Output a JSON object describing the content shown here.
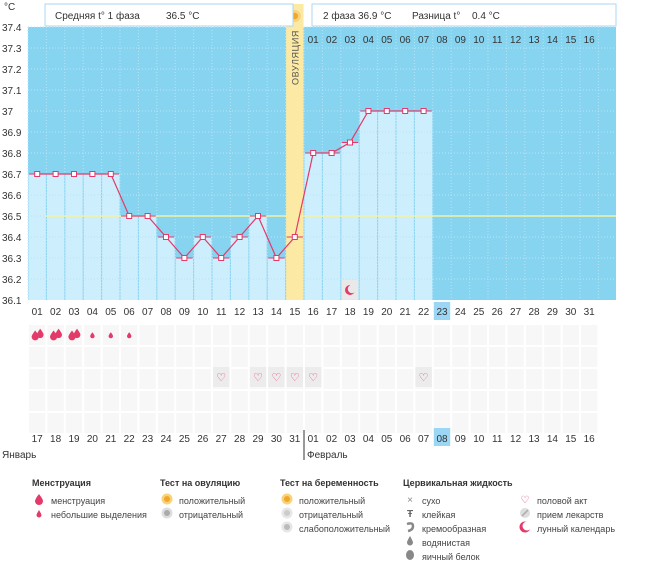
{
  "colors": {
    "sky": "#87d4f1",
    "bar": "#cdeefc",
    "bar_edge": "#a8d9f3",
    "line": "#e33a6a",
    "cover": "#fbe9a4",
    "ovulation": "#fbe9a4",
    "coverline": "#f3f2a0",
    "accent_red": "#d81b60",
    "hl": "#9bd6f4"
  },
  "header": {
    "unit": "°C",
    "phase1": "Средняя t° 1 фаза",
    "phase1_value": "36.5 °C",
    "phase2": "2 фаза",
    "phase2_value": "36.9 °C",
    "diff": "Разница t°",
    "diff_value": "0.4 °C"
  },
  "ovulation_label": "ОВУЛЯЦИЯ",
  "top_day_labels": [
    "01",
    "02",
    "03",
    "04",
    "05",
    "06",
    "07",
    "08",
    "09",
    "10",
    "11",
    "12",
    "13",
    "14",
    "15",
    "16"
  ],
  "chart_data": {
    "type": "line",
    "ylabel": "°C",
    "ylim": [
      36.1,
      37.4
    ],
    "y_ticks": [
      "37.4",
      "37.3",
      "37.2",
      "37.1",
      "37",
      "36.9",
      "36.8",
      "36.7",
      "36.6",
      "36.5",
      "36.4",
      "36.3",
      "36.2",
      "36.1"
    ],
    "x": [
      "01",
      "02",
      "03",
      "04",
      "05",
      "06",
      "07",
      "08",
      "09",
      "10",
      "11",
      "12",
      "13",
      "14",
      "15",
      "16",
      "17",
      "18",
      "19",
      "20",
      "21",
      "22",
      "23",
      "24",
      "25",
      "26",
      "27",
      "28",
      "29",
      "30",
      "31"
    ],
    "values": [
      36.7,
      36.7,
      36.7,
      36.7,
      36.7,
      36.5,
      36.5,
      36.4,
      36.3,
      36.4,
      36.3,
      36.4,
      36.5,
      36.3,
      36.4,
      36.8,
      36.8,
      36.85,
      37.0,
      37.0,
      37.0,
      37.0,
      null,
      null,
      null,
      null,
      null,
      null,
      null,
      null,
      null
    ],
    "coverline": 36.5,
    "ovulation_day": "15",
    "highlight_day": "23",
    "lunar_day": "18"
  },
  "date_row": {
    "dates": [
      "17",
      "18",
      "19",
      "20",
      "21",
      "22",
      "23",
      "24",
      "25",
      "26",
      "27",
      "28",
      "29",
      "30",
      "31",
      "01",
      "02",
      "03",
      "04",
      "05",
      "06",
      "07",
      "08",
      "09",
      "10",
      "11",
      "12",
      "13",
      "14",
      "15",
      "16"
    ],
    "red": [
      false,
      true,
      true,
      false,
      false,
      false,
      false,
      false,
      true,
      true,
      false,
      false,
      false,
      false,
      false,
      true,
      true,
      false,
      false,
      false,
      false,
      false,
      false,
      true,
      false,
      false,
      false,
      false,
      false,
      true,
      true
    ],
    "month1": "Январь",
    "month2": "Февраль"
  },
  "markers": {
    "menstruation": {
      "icon": "menstruation-drop-icon",
      "days": [
        "01",
        "02",
        "03"
      ]
    },
    "spotting": {
      "icon": "small-drop-icon",
      "days": [
        "04",
        "05",
        "06"
      ]
    },
    "intercourse": {
      "icon": "heart-icon",
      "days": [
        "11",
        "13",
        "14",
        "15",
        "16",
        "22"
      ]
    }
  },
  "legend": {
    "col1_title": "Менструация",
    "col1": [
      "менструация",
      "небольшие выделения"
    ],
    "col2_title": "Тест на овуляцию",
    "col2": [
      "положительный",
      "отрицательный"
    ],
    "col3_title": "Тест на беременность",
    "col3": [
      "положительный",
      "отрицательный",
      "слабоположительный"
    ],
    "col4_title": "Цервикальная жидкость",
    "col4": [
      "сухо",
      "клейкая",
      "кремообразная",
      "водянистая",
      "яичный белок"
    ],
    "col5": [
      "половой акт",
      "прием лекарств",
      "лунный календарь"
    ],
    "icons": {
      "menstruation": "drop-icon",
      "spotting": "small-drop-icon",
      "ovu_pos": "sun-icon",
      "ovu_neg": "grey-circle-icon",
      "preg_pos": "sun-icon",
      "preg_neg": "grey-circle-icon",
      "preg_weak": "grey-circle-icon",
      "dry": "cross-icon",
      "sticky": "t-icon",
      "creamy": "swirl-icon",
      "watery": "drop-icon",
      "eggwhite": "oval-icon",
      "sex": "heart-icon",
      "meds": "pill-icon",
      "moon": "moon-icon"
    }
  }
}
